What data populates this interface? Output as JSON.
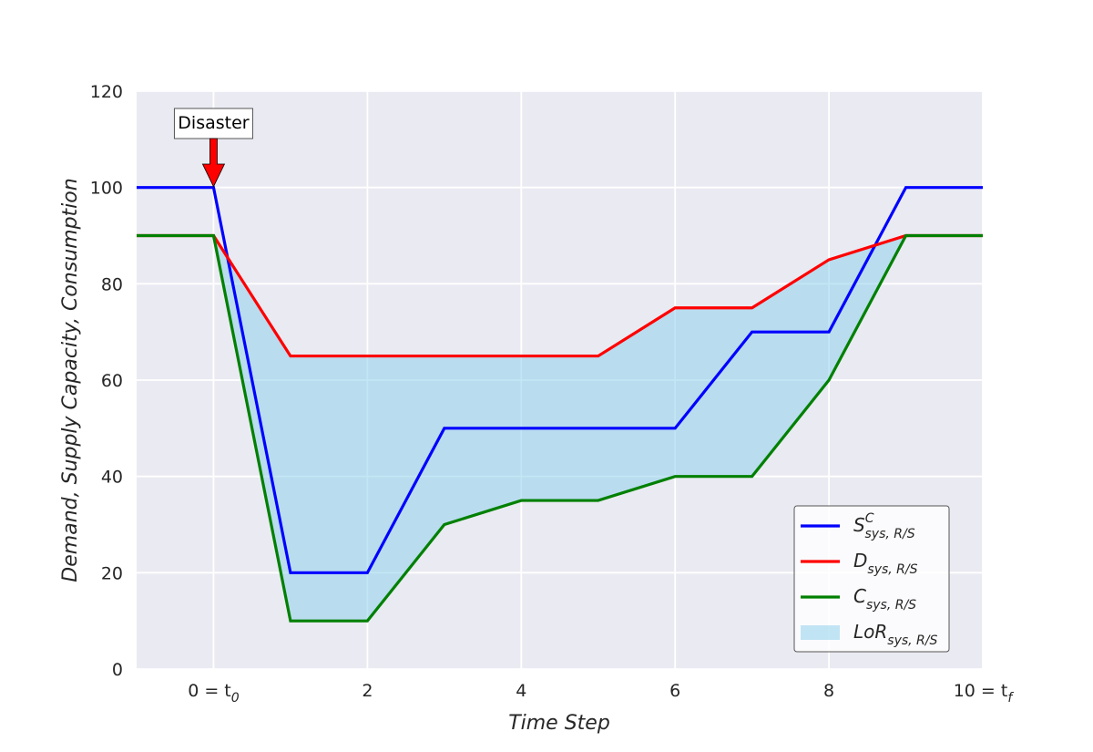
{
  "chart_data": {
    "type": "line",
    "title": "",
    "xlabel": "Time Step",
    "ylabel": "Demand, Supply Capacity, Consumption",
    "xlim": [
      -1,
      10
    ],
    "ylim": [
      0,
      120
    ],
    "grid": true,
    "x_ticks": [
      {
        "value": 0,
        "main": "0 = t",
        "sub": "0"
      },
      {
        "value": 2,
        "main": "2",
        "sub": ""
      },
      {
        "value": 4,
        "main": "4",
        "sub": ""
      },
      {
        "value": 6,
        "main": "6",
        "sub": ""
      },
      {
        "value": 8,
        "main": "8",
        "sub": ""
      },
      {
        "value": 10,
        "main": "10 = t",
        "sub": "f"
      }
    ],
    "y_ticks": [
      0,
      20,
      40,
      60,
      80,
      100,
      120
    ],
    "x": [
      -1,
      0,
      1,
      2,
      3,
      4,
      5,
      6,
      7,
      8,
      9,
      10
    ],
    "series": [
      {
        "name": "S_sys,R/S^C",
        "main": "S",
        "sub": "sys, R/S",
        "sup": "C",
        "color": "#0000ff",
        "values": [
          100,
          100,
          20,
          20,
          50,
          50,
          50,
          50,
          70,
          70,
          100,
          100
        ]
      },
      {
        "name": "D_sys,R/S",
        "main": "D",
        "sub": "sys, R/S",
        "sup": "",
        "color": "#ff0000",
        "values": [
          90,
          90,
          65,
          65,
          65,
          65,
          65,
          75,
          75,
          85,
          90,
          90
        ]
      },
      {
        "name": "C_sys,R/S",
        "main": "C",
        "sub": "sys, R/S",
        "sup": "",
        "color": "#008000",
        "values": [
          90,
          90,
          10,
          10,
          30,
          35,
          35,
          40,
          40,
          60,
          90,
          90
        ]
      }
    ],
    "area": {
      "name": "LoR_sys,R/S",
      "main": "LoR",
      "sub": "sys, R/S",
      "color": "#87ceeb",
      "upper": "D_sys,R/S",
      "lower": "C_sys,R/S"
    },
    "annotation": {
      "text": "Disaster",
      "x": 0,
      "y": 100,
      "arrow_color": "#ff0000"
    },
    "legend_position": "lower-right"
  }
}
